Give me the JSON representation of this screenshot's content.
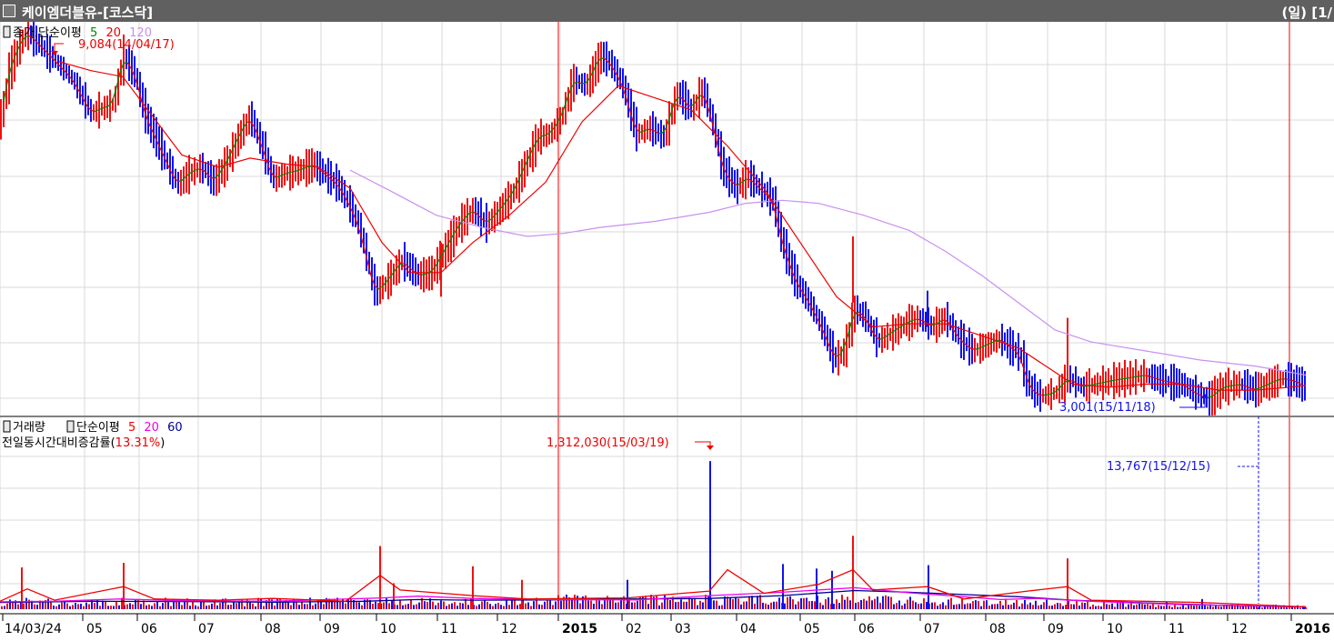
{
  "header": {
    "title": "케이엠더블유-[코스닥]",
    "right": "(일) [1/"
  },
  "colors": {
    "up": "#ee1111",
    "down": "#1111ee",
    "ma5": "#008800",
    "ma20": "#ee0000",
    "ma120": "#c890f0",
    "vol_ma5": "#ee0000",
    "vol_ma20": "#ee00ee",
    "vol_ma60": "#000090",
    "grid": "#d8d8d8",
    "event_line": "#ee0000"
  },
  "price_legend": {
    "series": "종가,단순이평",
    "p1": "5",
    "p2": "20",
    "p3": "120"
  },
  "volume_legend": {
    "series": "거래량",
    "ma_label": "단순이평",
    "p1": "5",
    "p2": "20",
    "p3": "60",
    "line2_prefix": "전일동시간대비증감률(",
    "line2_value": "13.31%",
    "line2_suffix": ")"
  },
  "annotations": {
    "price_high": "9,084(14/04/17)",
    "price_low": "3,001(15/11/18)",
    "volume_high": "1,312,030(15/03/19)",
    "volume_last": "13,767(15/12/15)"
  },
  "x_labels": [
    "14/03/24",
    "05",
    "06",
    "07",
    "08",
    "09",
    "10",
    "11",
    "12",
    "2015",
    "02",
    "03",
    "04",
    "05",
    "06",
    "07",
    "08",
    "09",
    "10",
    "11",
    "12",
    "2016"
  ],
  "bold_labels": [
    "2015",
    "2016"
  ],
  "chart_data": [
    {
      "type": "line",
      "x_start": "14/03/24",
      "x_end": "2016",
      "price_points": [
        [
          0,
          7600
        ],
        [
          10,
          8450
        ],
        [
          22,
          8900
        ],
        [
          30,
          9084
        ],
        [
          55,
          8700
        ],
        [
          80,
          8300
        ],
        [
          100,
          7750
        ],
        [
          125,
          7900
        ],
        [
          135,
          8700
        ],
        [
          148,
          8400
        ],
        [
          160,
          7700
        ],
        [
          178,
          7100
        ],
        [
          195,
          6550
        ],
        [
          208,
          6750
        ],
        [
          222,
          6850
        ],
        [
          235,
          6600
        ],
        [
          250,
          6950
        ],
        [
          262,
          7350
        ],
        [
          275,
          7700
        ],
        [
          288,
          7200
        ],
        [
          300,
          6650
        ],
        [
          315,
          6750
        ],
        [
          330,
          6800
        ],
        [
          345,
          6900
        ],
        [
          360,
          6700
        ],
        [
          372,
          6550
        ],
        [
          385,
          6200
        ],
        [
          395,
          5850
        ],
        [
          403,
          5350
        ],
        [
          413,
          4750
        ],
        [
          428,
          5000
        ],
        [
          442,
          5300
        ],
        [
          460,
          5050
        ],
        [
          475,
          5100
        ],
        [
          490,
          5500
        ],
        [
          505,
          5900
        ],
        [
          520,
          6150
        ],
        [
          535,
          5900
        ],
        [
          550,
          6150
        ],
        [
          565,
          6450
        ],
        [
          578,
          6900
        ],
        [
          592,
          7350
        ],
        [
          605,
          7400
        ],
        [
          618,
          7700
        ],
        [
          630,
          8300
        ],
        [
          645,
          8200
        ],
        [
          660,
          8700
        ],
        [
          670,
          8600
        ],
        [
          685,
          8200
        ],
        [
          700,
          7400
        ],
        [
          715,
          7500
        ],
        [
          730,
          7350
        ],
        [
          745,
          8100
        ],
        [
          760,
          7800
        ],
        [
          773,
          8150
        ],
        [
          785,
          7500
        ],
        [
          795,
          6800
        ],
        [
          810,
          6500
        ],
        [
          822,
          6700
        ],
        [
          835,
          6500
        ],
        [
          850,
          6300
        ],
        [
          860,
          5600
        ],
        [
          875,
          4950
        ],
        [
          890,
          4600
        ],
        [
          905,
          4150
        ],
        [
          918,
          3650
        ],
        [
          928,
          3800
        ],
        [
          940,
          4500
        ],
        [
          952,
          4350
        ],
        [
          965,
          3950
        ],
        [
          980,
          4100
        ],
        [
          995,
          4250
        ],
        [
          1010,
          4350
        ],
        [
          1025,
          4200
        ],
        [
          1040,
          4350
        ],
        [
          1055,
          4000
        ],
        [
          1070,
          3800
        ],
        [
          1085,
          3900
        ],
        [
          1100,
          4000
        ],
        [
          1112,
          3850
        ],
        [
          1122,
          3750
        ],
        [
          1130,
          3250
        ],
        [
          1142,
          3050
        ],
        [
          1160,
          3100
        ],
        [
          1175,
          3350
        ],
        [
          1190,
          3200
        ],
        [
          1205,
          3250
        ],
        [
          1220,
          3300
        ],
        [
          1240,
          3350
        ],
        [
          1260,
          3400
        ],
        [
          1280,
          3300
        ],
        [
          1300,
          3250
        ],
        [
          1315,
          3100
        ],
        [
          1330,
          3001
        ],
        [
          1345,
          3200
        ],
        [
          1365,
          3250
        ],
        [
          1380,
          3150
        ],
        [
          1395,
          3250
        ],
        [
          1410,
          3350
        ],
        [
          1425,
          3300
        ],
        [
          1436,
          3200
        ]
      ],
      "ma20_points": [
        [
          65,
          8600
        ],
        [
          100,
          8450
        ],
        [
          135,
          8350
        ],
        [
          165,
          7750
        ],
        [
          200,
          7050
        ],
        [
          240,
          6850
        ],
        [
          275,
          7000
        ],
        [
          315,
          6900
        ],
        [
          350,
          6850
        ],
        [
          385,
          6500
        ],
        [
          420,
          5600
        ],
        [
          450,
          5100
        ],
        [
          485,
          5100
        ],
        [
          520,
          5600
        ],
        [
          560,
          6050
        ],
        [
          600,
          6600
        ],
        [
          640,
          7600
        ],
        [
          680,
          8200
        ],
        [
          720,
          8000
        ],
        [
          760,
          7800
        ],
        [
          800,
          7200
        ],
        [
          840,
          6500
        ],
        [
          880,
          5600
        ],
        [
          920,
          4700
        ],
        [
          960,
          4200
        ],
        [
          1000,
          4250
        ],
        [
          1040,
          4250
        ],
        [
          1080,
          4050
        ],
        [
          1120,
          3850
        ],
        [
          1155,
          3500
        ],
        [
          1180,
          3250
        ],
        [
          1220,
          3200
        ],
        [
          1260,
          3250
        ],
        [
          1300,
          3250
        ],
        [
          1340,
          3150
        ],
        [
          1380,
          3150
        ],
        [
          1420,
          3200
        ],
        [
          1436,
          3230
        ]
      ],
      "ma120_points": [
        [
          385,
          6800
        ],
        [
          430,
          6450
        ],
        [
          480,
          6050
        ],
        [
          530,
          5850
        ],
        [
          580,
          5700
        ],
        [
          620,
          5750
        ],
        [
          660,
          5850
        ],
        [
          720,
          5950
        ],
        [
          780,
          6100
        ],
        [
          820,
          6250
        ],
        [
          860,
          6300
        ],
        [
          900,
          6250
        ],
        [
          950,
          6050
        ],
        [
          1000,
          5800
        ],
        [
          1040,
          5450
        ],
        [
          1080,
          5050
        ],
        [
          1120,
          4600
        ],
        [
          1160,
          4150
        ],
        [
          1200,
          3950
        ],
        [
          1260,
          3800
        ],
        [
          1320,
          3650
        ],
        [
          1380,
          3550
        ],
        [
          1436,
          3400
        ]
      ]
    },
    {
      "type": "bar",
      "x_start": "14/03/24",
      "x_end": "2016",
      "volume_points": [
        [
          24,
          370000
        ],
        [
          136,
          410000
        ],
        [
          418,
          560000
        ],
        [
          433,
          230000
        ],
        [
          520,
          380000
        ],
        [
          574,
          260000
        ],
        [
          690,
          260000
        ],
        [
          781,
          1312030
        ],
        [
          861,
          400000
        ],
        [
          898,
          360000
        ],
        [
          915,
          340000
        ],
        [
          938,
          650000
        ],
        [
          1021,
          390000
        ],
        [
          1174,
          450000
        ],
        [
          1322,
          90000
        ],
        [
          1384,
          13767
        ],
        [
          1434,
          20000
        ]
      ],
      "spikes": [
        [
          24,
          "up"
        ],
        [
          136,
          "up"
        ],
        [
          418,
          "up"
        ],
        [
          433,
          "up"
        ],
        [
          520,
          "up"
        ],
        [
          574,
          "up"
        ],
        [
          690,
          "down"
        ],
        [
          781,
          "down"
        ],
        [
          861,
          "down"
        ],
        [
          898,
          "down"
        ],
        [
          915,
          "down"
        ],
        [
          938,
          "up"
        ],
        [
          1021,
          "down"
        ],
        [
          1174,
          "up"
        ],
        [
          1322,
          "down"
        ]
      ]
    }
  ]
}
